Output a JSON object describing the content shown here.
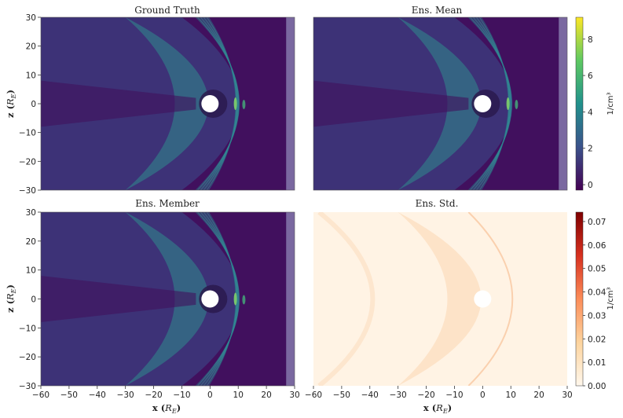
{
  "chart_data": [
    {
      "type": "heatmap",
      "title": "Ground Truth",
      "xlabel": "",
      "ylabel": "z (R_E)",
      "xlim": [
        -60,
        30
      ],
      "ylim": [
        -30,
        30
      ],
      "yticks": [
        "30",
        "20",
        "10",
        "0",
        "−10",
        "−20",
        "−30"
      ],
      "xticks": [],
      "colormap": "viridis"
    },
    {
      "type": "heatmap",
      "title": "Ens. Mean",
      "xlabel": "",
      "ylabel": "",
      "xlim": [
        -60,
        30
      ],
      "ylim": [
        -30,
        30
      ],
      "colorbar": {
        "label": "1/cm³",
        "range": [
          -0.3,
          9.2
        ],
        "ticks": [
          "8",
          "6",
          "4",
          "2",
          "0"
        ],
        "colormap": "viridis"
      }
    },
    {
      "type": "heatmap",
      "title": "Ens. Member",
      "xlabel": "x (R_E)",
      "ylabel": "z (R_E)",
      "xlim": [
        -60,
        30
      ],
      "ylim": [
        -30,
        30
      ],
      "xticks": [
        "−60",
        "−50",
        "−40",
        "−30",
        "−20",
        "−10",
        "0",
        "10",
        "20",
        "30"
      ],
      "yticks": [
        "30",
        "20",
        "10",
        "0",
        "−10",
        "−20",
        "−30"
      ],
      "colormap": "viridis"
    },
    {
      "type": "heatmap",
      "title": "Ens. Std.",
      "xlabel": "x (R_E)",
      "ylabel": "",
      "xlim": [
        -60,
        30
      ],
      "ylim": [
        -30,
        30
      ],
      "xticks": [
        "−60",
        "−50",
        "−40",
        "−30",
        "−20",
        "−10",
        "0",
        "10",
        "20",
        "30"
      ],
      "colorbar": {
        "label": "1/cm³",
        "range": [
          0,
          0.074
        ],
        "ticks": [
          "0.07",
          "0.06",
          "0.05",
          "0.04",
          "0.03",
          "0.02",
          "0.01",
          "0.00"
        ],
        "colormap": "orange-red"
      }
    }
  ],
  "labels": {
    "title_gt": "Ground Truth",
    "title_mean": "Ens. Mean",
    "title_member": "Ens. Member",
    "title_std": "Ens. Std.",
    "x_axis": "x",
    "z_axis": "z",
    "unit_base": "R",
    "unit_sub": "E",
    "cb_label_top": "1/cm³",
    "cb_label_bottom": "1/cm³"
  },
  "colors": {
    "bg_dark": "#41105e",
    "bg_mid": "#3a4e8c",
    "sheath": "#2f8c8e",
    "bright": "#7fd36a",
    "boundary": "#7a68a0",
    "std_bg": "#fff3e4",
    "std_mid": "#fbd5b0"
  }
}
